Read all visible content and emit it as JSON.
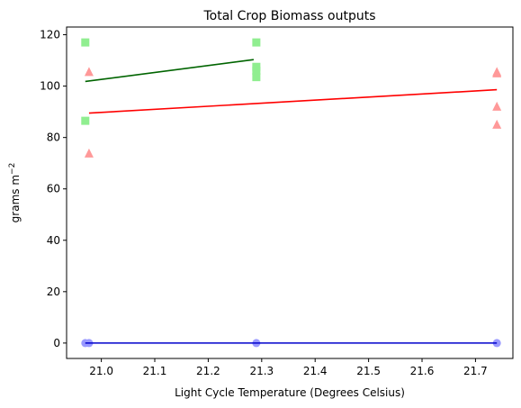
{
  "chart_data": {
    "type": "scatter",
    "title": "Total Crop Biomass outputs",
    "xlabel": "Light Cycle Temperature (Degrees Celsius)",
    "ylabel": "grams m",
    "ylabel_sup": "−2",
    "xlim": [
      20.935,
      21.77
    ],
    "ylim": [
      -6,
      123
    ],
    "x_ticks": [
      {
        "value": 21.0,
        "label": "21.0"
      },
      {
        "value": 21.1,
        "label": "21.1"
      },
      {
        "value": 21.2,
        "label": "21.2"
      },
      {
        "value": 21.3,
        "label": "21.3"
      },
      {
        "value": 21.4,
        "label": "21.4"
      },
      {
        "value": 21.5,
        "label": "21.5"
      },
      {
        "value": 21.6,
        "label": "21.6"
      },
      {
        "value": 21.7,
        "label": "21.7"
      }
    ],
    "y_ticks": [
      {
        "value": 0,
        "label": "0"
      },
      {
        "value": 20,
        "label": "20"
      },
      {
        "value": 40,
        "label": "40"
      },
      {
        "value": 60,
        "label": "60"
      },
      {
        "value": 80,
        "label": "80"
      },
      {
        "value": 100,
        "label": "100"
      },
      {
        "value": 120,
        "label": "120"
      }
    ],
    "grid": false,
    "series": [
      {
        "marker": "square",
        "color": "#90ee90",
        "line_color": "#006400",
        "points": [
          {
            "x": 20.97,
            "y": 117
          },
          {
            "x": 20.97,
            "y": 86.5
          },
          {
            "x": 21.29,
            "y": 117
          },
          {
            "x": 21.29,
            "y": 107.5
          },
          {
            "x": 21.29,
            "y": 106
          },
          {
            "x": 21.29,
            "y": 103.5
          }
        ],
        "fit": [
          {
            "x": 20.97,
            "y": 101.8
          },
          {
            "x": 21.285,
            "y": 110.3
          }
        ]
      },
      {
        "marker": "triangle",
        "color": "#ff9999",
        "line_color": "#ff0000",
        "points": [
          {
            "x": 20.977,
            "y": 105.5
          },
          {
            "x": 20.977,
            "y": 73.8
          },
          {
            "x": 21.74,
            "y": 105.5
          },
          {
            "x": 21.74,
            "y": 105
          },
          {
            "x": 21.74,
            "y": 92
          },
          {
            "x": 21.74,
            "y": 85
          }
        ],
        "fit": [
          {
            "x": 20.977,
            "y": 89.5
          },
          {
            "x": 21.74,
            "y": 98.6
          }
        ]
      },
      {
        "marker": "circle",
        "color": "#9999ff",
        "line_color": "#0000cc",
        "points": [
          {
            "x": 20.97,
            "y": 0
          },
          {
            "x": 20.977,
            "y": 0
          },
          {
            "x": 21.29,
            "y": 0
          },
          {
            "x": 21.74,
            "y": 0
          }
        ],
        "fit": [
          {
            "x": 20.97,
            "y": 0
          },
          {
            "x": 21.74,
            "y": 0
          }
        ]
      }
    ]
  }
}
